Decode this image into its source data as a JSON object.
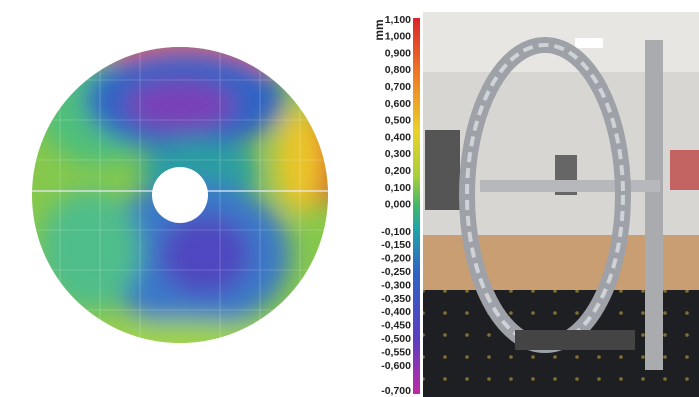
{
  "colorbar": {
    "unit": "mm",
    "ticks": [
      "1,100",
      "1,000",
      "0,900",
      "0,800",
      "0,700",
      "0,600",
      "0,500",
      "0,400",
      "0,300",
      "0,200",
      "0,100",
      "0,000",
      "-0,100",
      "-0,150",
      "-0,200",
      "-0,250",
      "-0,300",
      "-0,350",
      "-0,400",
      "-0,450",
      "-0,500",
      "-0,550",
      "-0,600",
      "-0,700"
    ]
  }
}
